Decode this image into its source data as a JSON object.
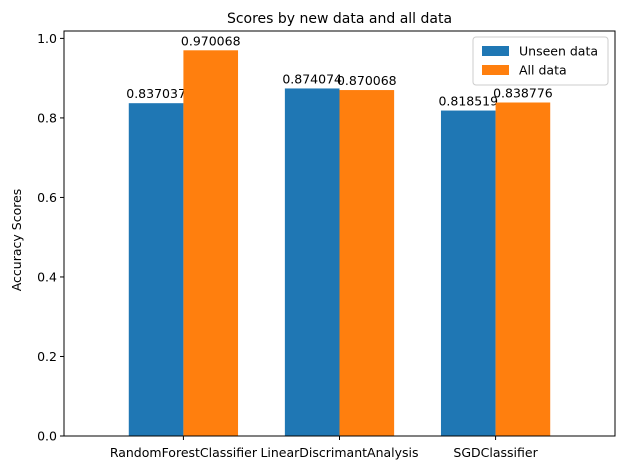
{
  "chart_data": {
    "type": "bar",
    "title": "Scores by new data and all data",
    "xlabel": "",
    "ylabel": "Accuracy Scores",
    "categories": [
      "RandomForestClassifier",
      "LinearDiscrimantAnalysis",
      "SGDClassifier"
    ],
    "series": [
      {
        "name": "Unseen data",
        "color": "#1f77b4",
        "values": [
          0.837037,
          0.874074,
          0.818519
        ],
        "labels": [
          "0.837037",
          "0.874074",
          "0.818519"
        ]
      },
      {
        "name": "All data",
        "color": "#ff7f0e",
        "values": [
          0.970068,
          0.870068,
          0.838776
        ],
        "labels": [
          "0.970068",
          "0.870068",
          "0.838776"
        ]
      }
    ],
    "ylim": [
      0,
      1.0186
    ],
    "yticks": [
      0.0,
      0.2,
      0.4,
      0.6,
      0.8,
      1.0
    ],
    "ytick_labels": [
      "0.0",
      "0.2",
      "0.4",
      "0.6",
      "0.8",
      "1.0"
    ],
    "grid": false,
    "legend_position": "top-right"
  }
}
